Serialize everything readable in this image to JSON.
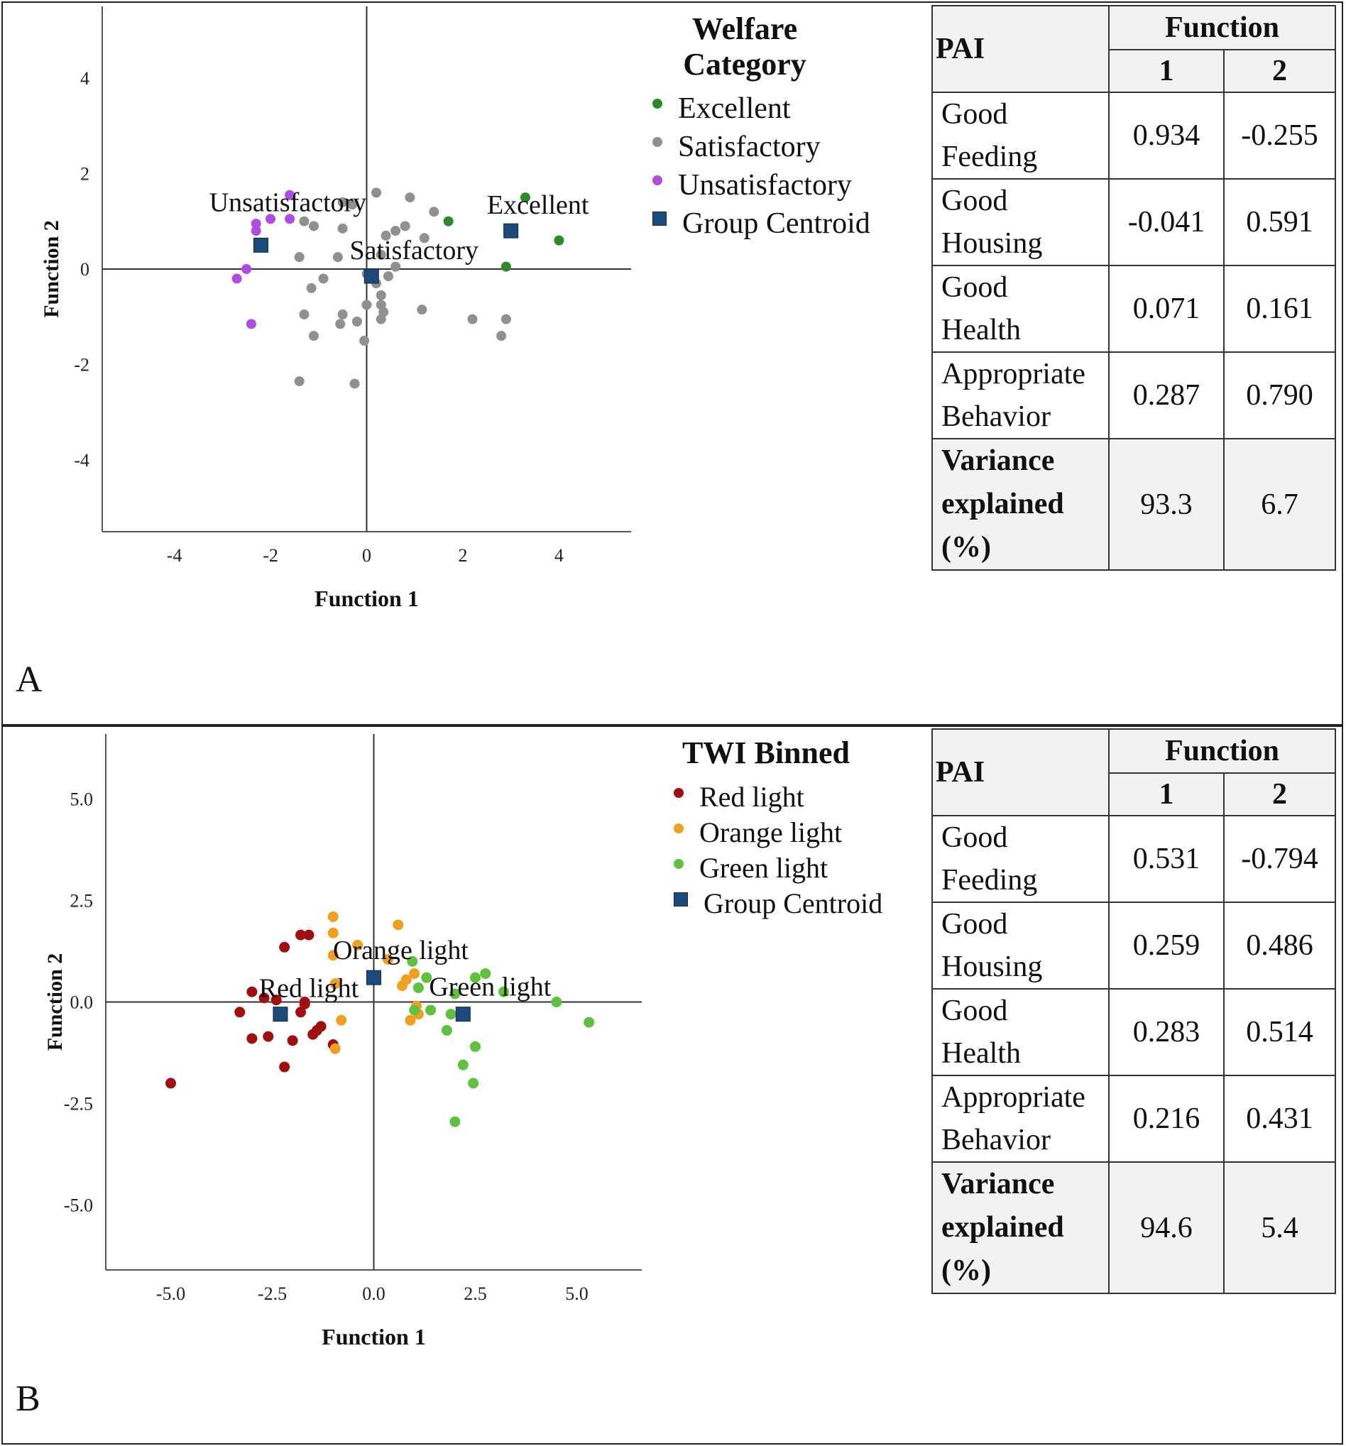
{
  "panels": [
    {
      "letter": "A",
      "chart_data": {
        "type": "scatter",
        "title": "",
        "xlabel": "Function 1",
        "ylabel": "Function 2",
        "xlim": [
          -5.5,
          5.5
        ],
        "ylim": [
          -5.5,
          5.5
        ],
        "xticks": [
          -4,
          -2,
          0,
          2,
          4
        ],
        "yticks": [
          -4,
          -2,
          0,
          2,
          4
        ],
        "xtick_labels": [
          "-4",
          "-2",
          "0",
          "2",
          "4"
        ],
        "ytick_labels": [
          "-4",
          "-2",
          "0",
          "2",
          "4"
        ],
        "legend_title": "Welfare Category",
        "legend_position": "right",
        "series": [
          {
            "name": "Excellent",
            "color": "#2b8a2b",
            "points": [
              [
                1.7,
                1.0
              ],
              [
                3.3,
                1.5
              ],
              [
                4.0,
                0.6
              ],
              [
                2.9,
                0.05
              ]
            ]
          },
          {
            "name": "Satisfactory",
            "color": "#909090",
            "points": [
              [
                -1.3,
                1.0
              ],
              [
                -1.1,
                0.9
              ],
              [
                -0.5,
                1.4
              ],
              [
                -0.3,
                1.35
              ],
              [
                0.2,
                1.6
              ],
              [
                0.9,
                1.5
              ],
              [
                1.4,
                1.2
              ],
              [
                0.8,
                0.9
              ],
              [
                0.6,
                0.8
              ],
              [
                0.4,
                0.7
              ],
              [
                1.2,
                0.65
              ],
              [
                -0.5,
                0.85
              ],
              [
                -0.6,
                0.25
              ],
              [
                -1.4,
                0.25
              ],
              [
                -1.15,
                -0.4
              ],
              [
                -0.9,
                -0.2
              ],
              [
                0.2,
                -0.3
              ],
              [
                0.0,
                -0.1
              ],
              [
                0.3,
                -0.55
              ],
              [
                0.3,
                -0.75
              ],
              [
                0.35,
                -0.9
              ],
              [
                0.0,
                -0.75
              ],
              [
                -0.5,
                -0.95
              ],
              [
                -1.3,
                -0.95
              ],
              [
                -0.2,
                -1.1
              ],
              [
                0.3,
                -1.05
              ],
              [
                -0.55,
                -1.15
              ],
              [
                1.15,
                -0.85
              ],
              [
                2.2,
                -1.05
              ],
              [
                2.9,
                -1.05
              ],
              [
                2.8,
                -1.4
              ],
              [
                -1.1,
                -1.4
              ],
              [
                -0.05,
                -1.5
              ],
              [
                -1.4,
                -2.35
              ],
              [
                -0.25,
                -2.4
              ],
              [
                0.3,
                0.3
              ],
              [
                0.45,
                -0.15
              ],
              [
                0.6,
                0.05
              ]
            ]
          },
          {
            "name": "Unsatisfactory",
            "color": "#b04de0",
            "points": [
              [
                -1.6,
                1.55
              ],
              [
                -1.6,
                1.05
              ],
              [
                -2.0,
                1.05
              ],
              [
                -2.3,
                0.95
              ],
              [
                -2.3,
                0.8
              ],
              [
                -2.5,
                0.0
              ],
              [
                -2.7,
                -0.2
              ],
              [
                -2.4,
                -1.15
              ]
            ]
          }
        ],
        "centroids": [
          {
            "name": "Unsatisfactory",
            "x": -2.2,
            "y": 0.5
          },
          {
            "name": "Satisfactory",
            "x": 0.1,
            "y": -0.15
          },
          {
            "name": "Excellent",
            "x": 3.0,
            "y": 0.8
          }
        ],
        "centroid_legend": "Group Centroid"
      },
      "table": {
        "pai_label": "PAI",
        "function_label": "Function",
        "col1": "1",
        "col2": "2",
        "rows": [
          {
            "name_line1": "Good",
            "name_line2": "Feeding",
            "f1": "0.934",
            "f2": "-0.255"
          },
          {
            "name_line1": "Good",
            "name_line2": "Housing",
            "f1": "-0.041",
            "f2": "0.591"
          },
          {
            "name_line1": "Good",
            "name_line2": "Health",
            "f1": "0.071",
            "f2": "0.161"
          },
          {
            "name_line1": "Appropriate",
            "name_line2": "Behavior",
            "f1": "0.287",
            "f2": "0.790"
          }
        ],
        "variance_line1": "Variance",
        "variance_line2": "explained",
        "variance_line3": "(%)",
        "variance_f1": "93.3",
        "variance_f2": "6.7"
      }
    },
    {
      "letter": "B",
      "chart_data": {
        "type": "scatter",
        "title": "",
        "xlabel": "Function 1",
        "ylabel": "Function 2",
        "xlim": [
          -6.6,
          6.6
        ],
        "ylim": [
          -6.6,
          6.6
        ],
        "xticks": [
          -5,
          -2.5,
          0,
          2.5,
          5
        ],
        "yticks": [
          -5,
          -2.5,
          0,
          2.5,
          5
        ],
        "xtick_labels": [
          "-5.0",
          "-2.5",
          "0.0",
          "2.5",
          "5.0"
        ],
        "ytick_labels": [
          "-5.0",
          "-2.5",
          "0.0",
          "2.5",
          "5.0"
        ],
        "legend_title": "TWI Binned",
        "legend_position": "right",
        "series": [
          {
            "name": "Red light",
            "color": "#a01010",
            "points": [
              [
                -5.0,
                -2.0
              ],
              [
                -3.3,
                -0.25
              ],
              [
                -3.0,
                0.25
              ],
              [
                -2.7,
                0.1
              ],
              [
                -2.4,
                0.05
              ],
              [
                -2.2,
                1.35
              ],
              [
                -1.8,
                1.65
              ],
              [
                -1.6,
                1.65
              ],
              [
                -1.7,
                -0.05
              ],
              [
                -1.8,
                -0.25
              ],
              [
                -1.4,
                -0.7
              ],
              [
                -1.3,
                -0.6
              ],
              [
                -1.5,
                -0.8
              ],
              [
                -2.6,
                -0.85
              ],
              [
                -3.0,
                -0.9
              ],
              [
                -2.0,
                -0.95
              ],
              [
                -1.0,
                -1.05
              ],
              [
                -2.2,
                -1.6
              ],
              [
                -1.7,
                0.0
              ]
            ]
          },
          {
            "name": "Orange light",
            "color": "#f0a020",
            "points": [
              [
                -1.0,
                2.1
              ],
              [
                -1.0,
                1.7
              ],
              [
                -0.4,
                1.4
              ],
              [
                0.6,
                1.9
              ],
              [
                -1.0,
                1.15
              ],
              [
                0.35,
                1.05
              ],
              [
                0.8,
                0.55
              ],
              [
                1.0,
                0.7
              ],
              [
                0.7,
                0.4
              ],
              [
                -0.95,
                0.45
              ],
              [
                -0.8,
                -0.45
              ],
              [
                0.9,
                -0.45
              ],
              [
                1.1,
                -0.3
              ],
              [
                1.05,
                -0.1
              ],
              [
                -0.95,
                -1.15
              ]
            ]
          },
          {
            "name": "Green light",
            "color": "#60c040",
            "points": [
              [
                0.95,
                1.0
              ],
              [
                1.3,
                0.6
              ],
              [
                1.1,
                0.35
              ],
              [
                2.5,
                0.6
              ],
              [
                2.75,
                0.7
              ],
              [
                3.2,
                0.25
              ],
              [
                4.5,
                0.0
              ],
              [
                5.3,
                -0.5
              ],
              [
                1.4,
                -0.2
              ],
              [
                1.0,
                -0.2
              ],
              [
                1.9,
                -0.3
              ],
              [
                2.0,
                0.2
              ],
              [
                1.8,
                -0.7
              ],
              [
                2.5,
                -1.1
              ],
              [
                2.2,
                -1.55
              ],
              [
                2.45,
                -2.0
              ],
              [
                2.0,
                -2.95
              ]
            ]
          }
        ],
        "centroids": [
          {
            "name": "Red light",
            "x": -2.3,
            "y": -0.3
          },
          {
            "name": "Orange light",
            "x": 0.0,
            "y": 0.6
          },
          {
            "name": "Green light",
            "x": 2.2,
            "y": -0.3
          }
        ],
        "centroid_legend": "Group Centroid"
      },
      "table": {
        "pai_label": "PAI",
        "function_label": "Function",
        "col1": "1",
        "col2": "2",
        "rows": [
          {
            "name_line1": "Good",
            "name_line2": "Feeding",
            "f1": "0.531",
            "f2": "-0.794"
          },
          {
            "name_line1": "Good",
            "name_line2": "Housing",
            "f1": "0.259",
            "f2": "0.486"
          },
          {
            "name_line1": "Good",
            "name_line2": "Health",
            "f1": "0.283",
            "f2": "0.514"
          },
          {
            "name_line1": "Appropriate",
            "name_line2": "Behavior",
            "f1": "0.216",
            "f2": "0.431"
          }
        ],
        "variance_line1": "Variance",
        "variance_line2": "explained",
        "variance_line3": "(%)",
        "variance_f1": "94.6",
        "variance_f2": "5.4"
      }
    }
  ]
}
